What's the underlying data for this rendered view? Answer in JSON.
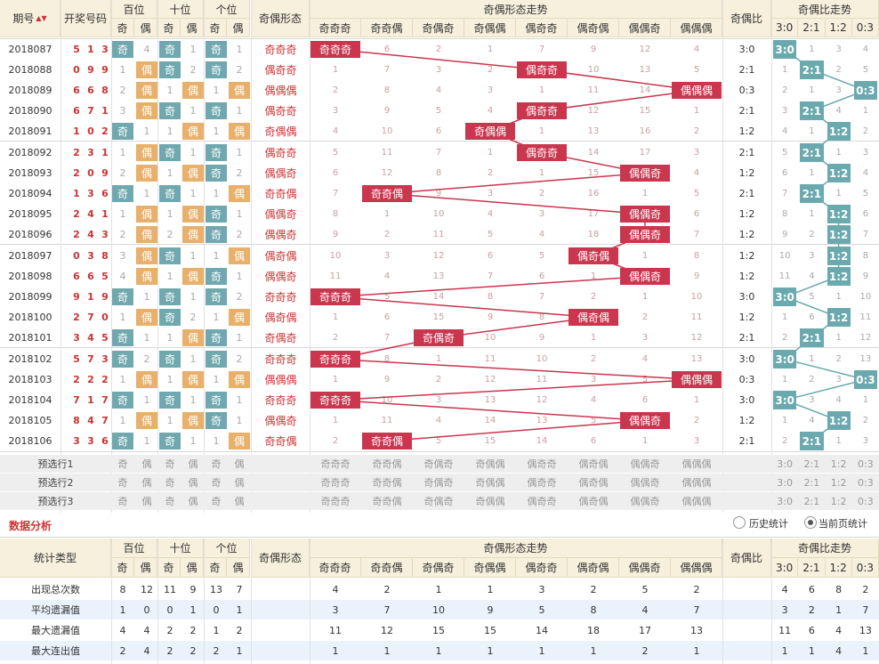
{
  "header": {
    "period": "期号",
    "period_sort": "▲▼",
    "winning": "开奖号码",
    "hundreds": "百位",
    "tens": "十位",
    "units": "个位",
    "odd": "奇",
    "even": "偶",
    "parity_form": "奇偶形态",
    "form_trend": "奇偶形态走势",
    "ratio": "奇偶比",
    "ratio_trend": "奇偶比走势"
  },
  "forms": [
    "奇奇奇",
    "奇奇偶",
    "奇偶奇",
    "奇偶偶",
    "偶奇奇",
    "偶奇偶",
    "偶偶奇",
    "偶偶偶"
  ],
  "ratios": [
    "3:0",
    "2:1",
    "1:2",
    "0:3"
  ],
  "rows": [
    {
      "p": "2018087",
      "n": [
        "5",
        "1",
        "3"
      ],
      "pos": [
        [
          "奇",
          "4"
        ],
        [
          "奇",
          "1"
        ],
        [
          "奇",
          "1"
        ]
      ],
      "form": "奇奇奇",
      "fm": [
        "奇奇奇",
        "6",
        "2",
        "1",
        "7",
        "9",
        "12",
        "4"
      ],
      "ratio": "3:0",
      "rm": [
        "3:0",
        "1",
        "3",
        "4"
      ]
    },
    {
      "p": "2018088",
      "n": [
        "0",
        "9",
        "9"
      ],
      "pos": [
        [
          "1",
          "偶"
        ],
        [
          "奇",
          "2"
        ],
        [
          "奇",
          "2"
        ]
      ],
      "form": "偶奇奇",
      "fm": [
        "1",
        "7",
        "3",
        "2",
        "偶奇奇",
        "10",
        "13",
        "5"
      ],
      "ratio": "2:1",
      "rm": [
        "1",
        "2:1",
        "2",
        "5"
      ]
    },
    {
      "p": "2018089",
      "n": [
        "6",
        "6",
        "8"
      ],
      "pos": [
        [
          "2",
          "偶"
        ],
        [
          "1",
          "偶"
        ],
        [
          "1",
          "偶"
        ]
      ],
      "form": "偶偶偶",
      "fm": [
        "2",
        "8",
        "4",
        "3",
        "1",
        "11",
        "14",
        "偶偶偶"
      ],
      "ratio": "0:3",
      "rm": [
        "2",
        "1",
        "3",
        "0:3"
      ]
    },
    {
      "p": "2018090",
      "n": [
        "6",
        "7",
        "1"
      ],
      "pos": [
        [
          "3",
          "偶"
        ],
        [
          "奇",
          "1"
        ],
        [
          "奇",
          "1"
        ]
      ],
      "form": "偶奇奇",
      "fm": [
        "3",
        "9",
        "5",
        "4",
        "偶奇奇",
        "12",
        "15",
        "1"
      ],
      "ratio": "2:1",
      "rm": [
        "3",
        "2:1",
        "4",
        "1"
      ]
    },
    {
      "p": "2018091",
      "n": [
        "1",
        "0",
        "2"
      ],
      "pos": [
        [
          "奇",
          "1"
        ],
        [
          "1",
          "偶"
        ],
        [
          "1",
          "偶"
        ]
      ],
      "form": "奇偶偶",
      "fm": [
        "4",
        "10",
        "6",
        "奇偶偶",
        "1",
        "13",
        "16",
        "2"
      ],
      "ratio": "1:2",
      "rm": [
        "4",
        "1",
        "1:2",
        "2"
      ]
    },
    {
      "p": "2018092",
      "n": [
        "2",
        "3",
        "1"
      ],
      "pos": [
        [
          "1",
          "偶"
        ],
        [
          "奇",
          "1"
        ],
        [
          "奇",
          "1"
        ]
      ],
      "form": "偶奇奇",
      "fm": [
        "5",
        "11",
        "7",
        "1",
        "偶奇奇",
        "14",
        "17",
        "3"
      ],
      "ratio": "2:1",
      "rm": [
        "5",
        "2:1",
        "1",
        "3"
      ]
    },
    {
      "p": "2018093",
      "n": [
        "2",
        "0",
        "9"
      ],
      "pos": [
        [
          "2",
          "偶"
        ],
        [
          "1",
          "偶"
        ],
        [
          "奇",
          "2"
        ]
      ],
      "form": "偶偶奇",
      "fm": [
        "6",
        "12",
        "8",
        "2",
        "1",
        "15",
        "偶偶奇",
        "4"
      ],
      "ratio": "1:2",
      "rm": [
        "6",
        "1",
        "1:2",
        "4"
      ]
    },
    {
      "p": "2018094",
      "n": [
        "1",
        "3",
        "6"
      ],
      "pos": [
        [
          "奇",
          "1"
        ],
        [
          "奇",
          "1"
        ],
        [
          "1",
          "偶"
        ]
      ],
      "form": "奇奇偶",
      "fm": [
        "7",
        "奇奇偶",
        "9",
        "3",
        "2",
        "16",
        "1",
        "5"
      ],
      "ratio": "2:1",
      "rm": [
        "7",
        "2:1",
        "1",
        "5"
      ]
    },
    {
      "p": "2018095",
      "n": [
        "2",
        "4",
        "1"
      ],
      "pos": [
        [
          "1",
          "偶"
        ],
        [
          "1",
          "偶"
        ],
        [
          "奇",
          "1"
        ]
      ],
      "form": "偶偶奇",
      "fm": [
        "8",
        "1",
        "10",
        "4",
        "3",
        "17",
        "偶偶奇",
        "6"
      ],
      "ratio": "1:2",
      "rm": [
        "8",
        "1",
        "1:2",
        "6"
      ]
    },
    {
      "p": "2018096",
      "n": [
        "2",
        "4",
        "3"
      ],
      "pos": [
        [
          "2",
          "偶"
        ],
        [
          "2",
          "偶"
        ],
        [
          "奇",
          "2"
        ]
      ],
      "form": "偶偶奇",
      "fm": [
        "9",
        "2",
        "11",
        "5",
        "4",
        "18",
        "偶偶奇",
        "7"
      ],
      "ratio": "1:2",
      "rm": [
        "9",
        "2",
        "1:2",
        "7"
      ]
    },
    {
      "p": "2018097",
      "n": [
        "0",
        "3",
        "8"
      ],
      "pos": [
        [
          "3",
          "偶"
        ],
        [
          "奇",
          "1"
        ],
        [
          "1",
          "偶"
        ]
      ],
      "form": "偶奇偶",
      "fm": [
        "10",
        "3",
        "12",
        "6",
        "5",
        "偶奇偶",
        "1",
        "8"
      ],
      "ratio": "1:2",
      "rm": [
        "10",
        "3",
        "1:2",
        "8"
      ]
    },
    {
      "p": "2018098",
      "n": [
        "6",
        "6",
        "5"
      ],
      "pos": [
        [
          "4",
          "偶"
        ],
        [
          "1",
          "偶"
        ],
        [
          "奇",
          "1"
        ]
      ],
      "form": "偶偶奇",
      "fm": [
        "11",
        "4",
        "13",
        "7",
        "6",
        "1",
        "偶偶奇",
        "9"
      ],
      "ratio": "1:2",
      "rm": [
        "11",
        "4",
        "1:2",
        "9"
      ]
    },
    {
      "p": "2018099",
      "n": [
        "9",
        "1",
        "9"
      ],
      "pos": [
        [
          "奇",
          "1"
        ],
        [
          "奇",
          "1"
        ],
        [
          "奇",
          "2"
        ]
      ],
      "form": "奇奇奇",
      "fm": [
        "奇奇奇",
        "5",
        "14",
        "8",
        "7",
        "2",
        "1",
        "10"
      ],
      "ratio": "3:0",
      "rm": [
        "3:0",
        "5",
        "1",
        "10"
      ]
    },
    {
      "p": "2018100",
      "n": [
        "2",
        "7",
        "0"
      ],
      "pos": [
        [
          "1",
          "偶"
        ],
        [
          "奇",
          "2"
        ],
        [
          "1",
          "偶"
        ]
      ],
      "form": "偶奇偶",
      "fm": [
        "1",
        "6",
        "15",
        "9",
        "8",
        "偶奇偶",
        "2",
        "11"
      ],
      "ratio": "1:2",
      "rm": [
        "1",
        "6",
        "1:2",
        "11"
      ]
    },
    {
      "p": "2018101",
      "n": [
        "3",
        "4",
        "5"
      ],
      "pos": [
        [
          "奇",
          "1"
        ],
        [
          "1",
          "偶"
        ],
        [
          "奇",
          "1"
        ]
      ],
      "form": "奇偶奇",
      "fm": [
        "2",
        "7",
        "奇偶奇",
        "10",
        "9",
        "1",
        "3",
        "12"
      ],
      "ratio": "2:1",
      "rm": [
        "2",
        "2:1",
        "1",
        "12"
      ]
    },
    {
      "p": "2018102",
      "n": [
        "5",
        "7",
        "3"
      ],
      "pos": [
        [
          "奇",
          "2"
        ],
        [
          "奇",
          "1"
        ],
        [
          "奇",
          "2"
        ]
      ],
      "form": "奇奇奇",
      "fm": [
        "奇奇奇",
        "8",
        "1",
        "11",
        "10",
        "2",
        "4",
        "13"
      ],
      "ratio": "3:0",
      "rm": [
        "3:0",
        "1",
        "2",
        "13"
      ]
    },
    {
      "p": "2018103",
      "n": [
        "2",
        "2",
        "2"
      ],
      "pos": [
        [
          "1",
          "偶"
        ],
        [
          "1",
          "偶"
        ],
        [
          "1",
          "偶"
        ]
      ],
      "form": "偶偶偶",
      "fm": [
        "1",
        "9",
        "2",
        "12",
        "11",
        "3",
        "5",
        "偶偶偶"
      ],
      "ratio": "0:3",
      "rm": [
        "1",
        "2",
        "3",
        "0:3"
      ]
    },
    {
      "p": "2018104",
      "n": [
        "7",
        "1",
        "7"
      ],
      "pos": [
        [
          "奇",
          "1"
        ],
        [
          "奇",
          "1"
        ],
        [
          "奇",
          "1"
        ]
      ],
      "form": "奇奇奇",
      "fm": [
        "奇奇奇",
        "10",
        "3",
        "13",
        "12",
        "4",
        "6",
        "1"
      ],
      "ratio": "3:0",
      "rm": [
        "3:0",
        "3",
        "4",
        "1"
      ]
    },
    {
      "p": "2018105",
      "n": [
        "8",
        "4",
        "7"
      ],
      "pos": [
        [
          "1",
          "偶"
        ],
        [
          "1",
          "偶"
        ],
        [
          "奇",
          "1"
        ]
      ],
      "form": "偶偶奇",
      "fm": [
        "1",
        "11",
        "4",
        "14",
        "13",
        "5",
        "偶偶奇",
        "2"
      ],
      "ratio": "1:2",
      "rm": [
        "1",
        "4",
        "1:2",
        "2"
      ]
    },
    {
      "p": "2018106",
      "n": [
        "3",
        "3",
        "6"
      ],
      "pos": [
        [
          "奇",
          "1"
        ],
        [
          "奇",
          "1"
        ],
        [
          "1",
          "偶"
        ]
      ],
      "form": "奇奇偶",
      "fm": [
        "2",
        "奇奇偶",
        "5",
        "15",
        "14",
        "6",
        "1",
        "3"
      ],
      "ratio": "2:1",
      "rm": [
        "2",
        "2:1",
        "1",
        "3"
      ]
    }
  ],
  "preselect": [
    "预选行1",
    "预选行2",
    "预选行3"
  ],
  "analysis": {
    "title": "数据分析",
    "history": "历史统计",
    "current": "当前页统计",
    "stat_type": "统计类型"
  },
  "stats": [
    {
      "label": "出现总次数",
      "pos": [
        "8",
        "12",
        "11",
        "9",
        "13",
        "7"
      ],
      "fm": [
        "4",
        "2",
        "1",
        "1",
        "3",
        "2",
        "5",
        "2"
      ],
      "rm": [
        "4",
        "6",
        "8",
        "2"
      ]
    },
    {
      "label": "平均遗漏值",
      "pos": [
        "1",
        "0",
        "0",
        "1",
        "0",
        "1"
      ],
      "fm": [
        "3",
        "7",
        "10",
        "9",
        "5",
        "8",
        "4",
        "7"
      ],
      "rm": [
        "3",
        "2",
        "1",
        "7"
      ]
    },
    {
      "label": "最大遗漏值",
      "pos": [
        "4",
        "4",
        "2",
        "2",
        "1",
        "2"
      ],
      "fm": [
        "11",
        "12",
        "15",
        "15",
        "14",
        "18",
        "17",
        "13"
      ],
      "rm": [
        "11",
        "6",
        "4",
        "13"
      ]
    },
    {
      "label": "最大连出值",
      "pos": [
        "2",
        "4",
        "2",
        "2",
        "2",
        "1"
      ],
      "fm": [
        "1",
        "1",
        "1",
        "1",
        "1",
        "1",
        "2",
        "1"
      ],
      "rm": [
        "1",
        "1",
        "4",
        "1"
      ]
    }
  ]
}
